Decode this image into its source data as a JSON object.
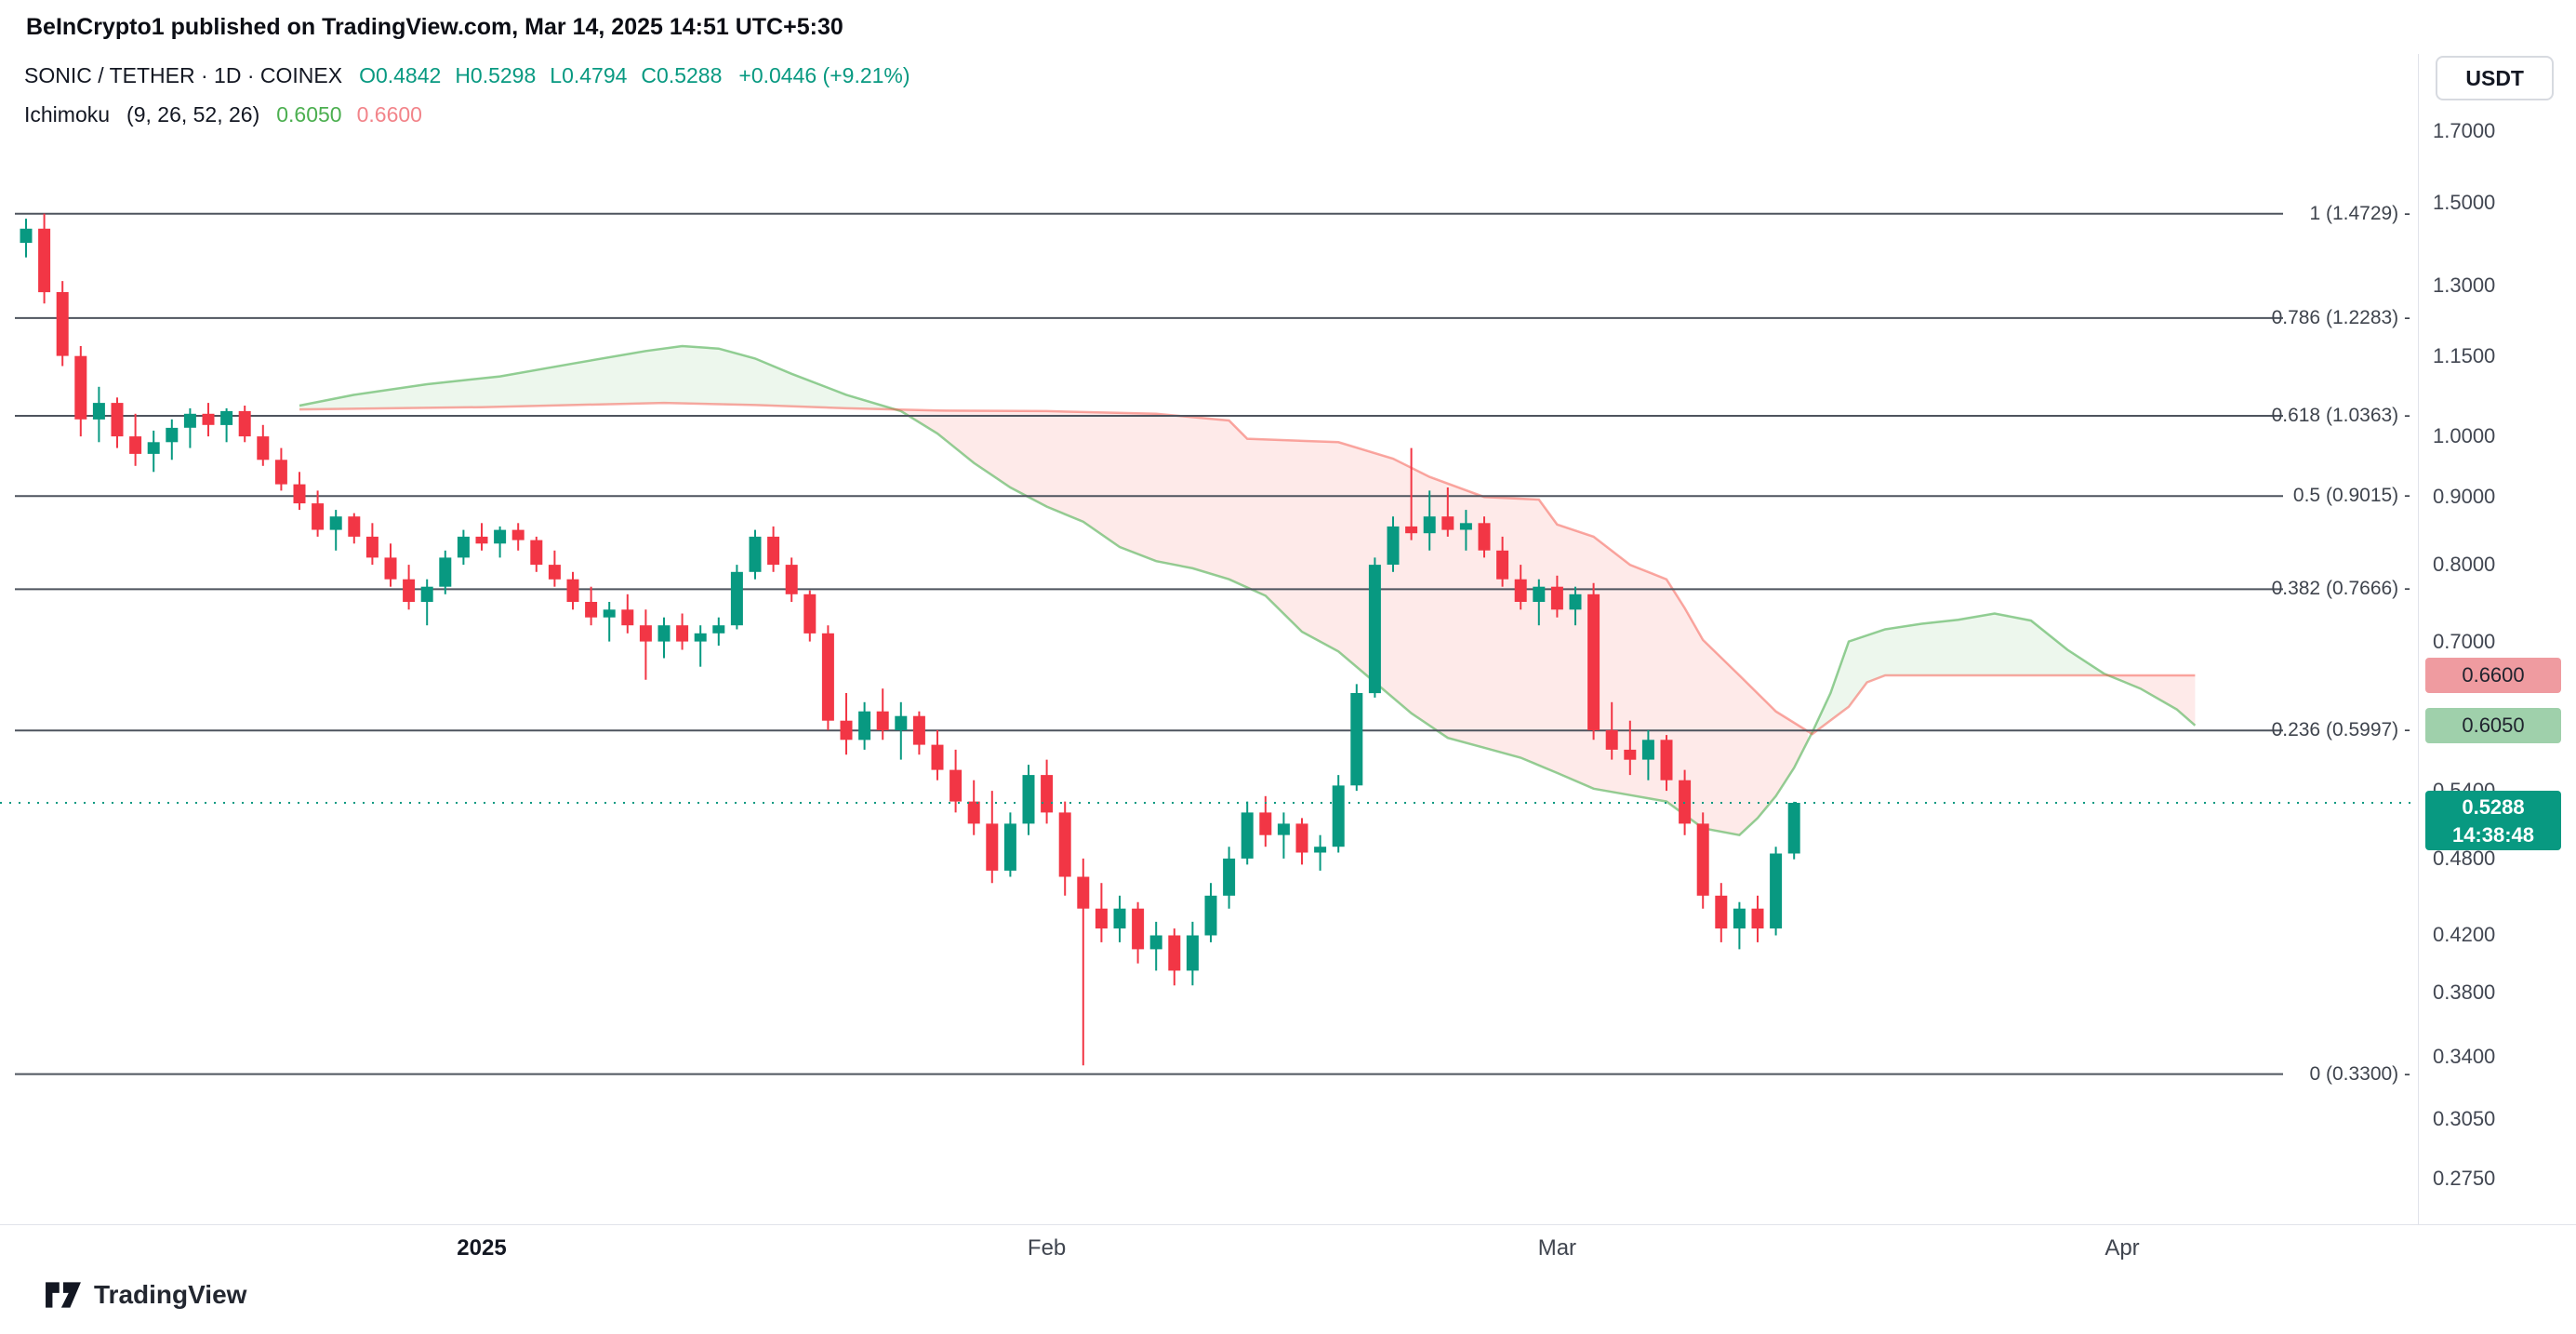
{
  "header": {
    "attribution": "BeInCrypto1 published on TradingView.com, Mar 14, 2025 14:51 UTC+5:30"
  },
  "toolbar": {
    "currency_button": "USDT"
  },
  "legend": {
    "symbol": "SONIC / TETHER · 1D · COINEX",
    "ohlc": [
      {
        "k": "O",
        "v": "0.4842"
      },
      {
        "k": "H",
        "v": "0.5298"
      },
      {
        "k": "L",
        "v": "0.4794"
      },
      {
        "k": "C",
        "v": "0.5288"
      }
    ],
    "change": "+0.0446 (+9.21%)",
    "indicator": {
      "name": "Ichimoku",
      "params": "(9, 26, 52, 26)",
      "values": [
        {
          "text": "0.6050",
          "color": "#4caf50"
        },
        {
          "text": "0.6600",
          "color": "#f2848a"
        }
      ]
    }
  },
  "watermark": {
    "text": "TradingView"
  },
  "time_axis": {
    "labels": [
      {
        "text": "2025",
        "i": 25,
        "bold": true
      },
      {
        "text": "Feb",
        "i": 56
      },
      {
        "text": "Mar",
        "i": 84
      },
      {
        "text": "Apr",
        "i": 115
      }
    ]
  },
  "price_axis": {
    "ticks": [
      {
        "text": "1.7000",
        "price": 1.7
      },
      {
        "text": "1.5000",
        "price": 1.5
      },
      {
        "text": "1.3000",
        "price": 1.3
      },
      {
        "text": "1.1500",
        "price": 1.15
      },
      {
        "text": "1.0000",
        "price": 1.0
      },
      {
        "text": "0.9000",
        "price": 0.9
      },
      {
        "text": "0.8000",
        "price": 0.8
      },
      {
        "text": "0.7000",
        "price": 0.7
      },
      {
        "text": "0.5400",
        "price": 0.54
      },
      {
        "text": "0.4800",
        "price": 0.48
      },
      {
        "text": "0.4200",
        "price": 0.42
      },
      {
        "text": "0.3800",
        "price": 0.38
      },
      {
        "text": "0.3400",
        "price": 0.34
      },
      {
        "text": "0.3050",
        "price": 0.305
      },
      {
        "text": "0.2750",
        "price": 0.275
      }
    ],
    "labels": [
      {
        "name": "ichimoku-span-b-price-label",
        "text": "0.6600",
        "price": 0.66,
        "bg": "#ef9ba0",
        "color": "#20242e"
      },
      {
        "name": "ichimoku-span-a-price-label",
        "text": "0.6050",
        "price": 0.605,
        "bg": "#9fd0ab",
        "color": "#20242e"
      },
      {
        "name": "last-price-label",
        "text": "0.5288",
        "sub": "14:38:48",
        "price": 0.5288,
        "bg": "#089981",
        "color": "#ffffff"
      }
    ]
  },
  "colors": {
    "up": "#089981",
    "down": "#f23645",
    "cloud_up": "rgba(76,175,80,0.10)",
    "cloud_down": "rgba(244,67,54,0.11)",
    "senkou_a": "#4caf50",
    "senkou_b": "#f44336",
    "fib_line": "#4e545e",
    "price_line": "#089981"
  },
  "chart_data": {
    "type": "candlestick",
    "symbol": "SONIC / TETHER",
    "exchange": "COINEX",
    "interval": "1D",
    "scale": "log",
    "ylim": [
      0.26,
      1.8
    ],
    "start_date": "2024-12-07",
    "end_date": "2025-03-14",
    "x_tick_labels": [
      "2025",
      "Feb",
      "Mar",
      "Apr"
    ],
    "current_price": 0.5288,
    "countdown": "14:38:48",
    "last_bar": {
      "open": 0.4842,
      "high": 0.5298,
      "low": 0.4794,
      "close": 0.5288,
      "change_abs": 0.0446,
      "change_pct": 9.21
    },
    "fibonacci": [
      {
        "level": "1",
        "price": 1.4729,
        "text": "1 (1.4729) -"
      },
      {
        "level": "0.786",
        "price": 1.2283,
        "text": "0.786 (1.2283) -"
      },
      {
        "level": "0.618",
        "price": 1.0363,
        "text": "0.618 (1.0363) -"
      },
      {
        "level": "0.5",
        "price": 0.9015,
        "text": "0.5 (0.9015) -"
      },
      {
        "level": "0.382",
        "price": 0.7666,
        "text": "0.382 (0.7666) -"
      },
      {
        "level": "0.236",
        "price": 0.5997,
        "text": "0.236 (0.5997) -"
      },
      {
        "level": "0",
        "price": 0.33,
        "text": "0 (0.3300) -"
      }
    ],
    "candles": [
      [
        1.4,
        1.46,
        1.365,
        1.435
      ],
      [
        1.435,
        1.473,
        1.26,
        1.285
      ],
      [
        1.285,
        1.31,
        1.13,
        1.15
      ],
      [
        1.15,
        1.17,
        1.0,
        1.03
      ],
      [
        1.03,
        1.09,
        0.99,
        1.06
      ],
      [
        1.06,
        1.07,
        0.98,
        1.0
      ],
      [
        1.0,
        1.04,
        0.95,
        0.97
      ],
      [
        0.97,
        1.01,
        0.94,
        0.99
      ],
      [
        0.99,
        1.03,
        0.96,
        1.015
      ],
      [
        1.015,
        1.05,
        0.98,
        1.04
      ],
      [
        1.04,
        1.06,
        1.0,
        1.02
      ],
      [
        1.02,
        1.05,
        0.99,
        1.045
      ],
      [
        1.045,
        1.055,
        0.99,
        1.0
      ],
      [
        1.0,
        1.02,
        0.95,
        0.96
      ],
      [
        0.96,
        0.98,
        0.91,
        0.92
      ],
      [
        0.92,
        0.94,
        0.88,
        0.89
      ],
      [
        0.89,
        0.91,
        0.84,
        0.85
      ],
      [
        0.85,
        0.88,
        0.82,
        0.87
      ],
      [
        0.87,
        0.875,
        0.83,
        0.84
      ],
      [
        0.84,
        0.86,
        0.8,
        0.81
      ],
      [
        0.81,
        0.83,
        0.77,
        0.78
      ],
      [
        0.78,
        0.8,
        0.74,
        0.75
      ],
      [
        0.75,
        0.78,
        0.72,
        0.77
      ],
      [
        0.77,
        0.82,
        0.76,
        0.81
      ],
      [
        0.81,
        0.85,
        0.8,
        0.84
      ],
      [
        0.84,
        0.86,
        0.82,
        0.83
      ],
      [
        0.83,
        0.855,
        0.81,
        0.85
      ],
      [
        0.85,
        0.86,
        0.82,
        0.835
      ],
      [
        0.835,
        0.84,
        0.79,
        0.8
      ],
      [
        0.8,
        0.82,
        0.77,
        0.78
      ],
      [
        0.78,
        0.79,
        0.74,
        0.75
      ],
      [
        0.75,
        0.77,
        0.72,
        0.73
      ],
      [
        0.73,
        0.75,
        0.7,
        0.74
      ],
      [
        0.74,
        0.76,
        0.71,
        0.72
      ],
      [
        0.72,
        0.74,
        0.655,
        0.7
      ],
      [
        0.7,
        0.73,
        0.68,
        0.72
      ],
      [
        0.72,
        0.735,
        0.69,
        0.7
      ],
      [
        0.7,
        0.72,
        0.67,
        0.71
      ],
      [
        0.71,
        0.73,
        0.695,
        0.72
      ],
      [
        0.72,
        0.8,
        0.715,
        0.79
      ],
      [
        0.79,
        0.85,
        0.78,
        0.84
      ],
      [
        0.84,
        0.855,
        0.79,
        0.8
      ],
      [
        0.8,
        0.81,
        0.75,
        0.76
      ],
      [
        0.76,
        0.765,
        0.7,
        0.71
      ],
      [
        0.71,
        0.72,
        0.6,
        0.61
      ],
      [
        0.61,
        0.64,
        0.575,
        0.59
      ],
      [
        0.59,
        0.63,
        0.58,
        0.62
      ],
      [
        0.62,
        0.645,
        0.59,
        0.6
      ],
      [
        0.6,
        0.63,
        0.57,
        0.615
      ],
      [
        0.615,
        0.62,
        0.575,
        0.585
      ],
      [
        0.585,
        0.6,
        0.55,
        0.56
      ],
      [
        0.56,
        0.58,
        0.52,
        0.53
      ],
      [
        0.53,
        0.55,
        0.5,
        0.51
      ],
      [
        0.51,
        0.54,
        0.46,
        0.47
      ],
      [
        0.47,
        0.52,
        0.465,
        0.51
      ],
      [
        0.51,
        0.565,
        0.5,
        0.555
      ],
      [
        0.555,
        0.57,
        0.51,
        0.52
      ],
      [
        0.52,
        0.53,
        0.45,
        0.465
      ],
      [
        0.465,
        0.48,
        0.335,
        0.44
      ],
      [
        0.44,
        0.46,
        0.415,
        0.425
      ],
      [
        0.425,
        0.45,
        0.415,
        0.44
      ],
      [
        0.44,
        0.445,
        0.4,
        0.41
      ],
      [
        0.41,
        0.43,
        0.395,
        0.42
      ],
      [
        0.42,
        0.425,
        0.385,
        0.395
      ],
      [
        0.395,
        0.43,
        0.385,
        0.42
      ],
      [
        0.42,
        0.46,
        0.415,
        0.45
      ],
      [
        0.45,
        0.49,
        0.44,
        0.48
      ],
      [
        0.48,
        0.53,
        0.475,
        0.52
      ],
      [
        0.52,
        0.535,
        0.49,
        0.5
      ],
      [
        0.5,
        0.52,
        0.48,
        0.51
      ],
      [
        0.51,
        0.515,
        0.475,
        0.485
      ],
      [
        0.485,
        0.5,
        0.47,
        0.49
      ],
      [
        0.49,
        0.555,
        0.485,
        0.545
      ],
      [
        0.545,
        0.65,
        0.54,
        0.64
      ],
      [
        0.64,
        0.81,
        0.635,
        0.8
      ],
      [
        0.8,
        0.87,
        0.79,
        0.855
      ],
      [
        0.855,
        0.98,
        0.835,
        0.845
      ],
      [
        0.845,
        0.91,
        0.82,
        0.87
      ],
      [
        0.87,
        0.915,
        0.84,
        0.85
      ],
      [
        0.85,
        0.88,
        0.82,
        0.86
      ],
      [
        0.86,
        0.87,
        0.81,
        0.82
      ],
      [
        0.82,
        0.84,
        0.77,
        0.78
      ],
      [
        0.78,
        0.8,
        0.74,
        0.75
      ],
      [
        0.75,
        0.78,
        0.72,
        0.77
      ],
      [
        0.77,
        0.785,
        0.73,
        0.74
      ],
      [
        0.74,
        0.77,
        0.72,
        0.76
      ],
      [
        0.76,
        0.775,
        0.59,
        0.6
      ],
      [
        0.6,
        0.63,
        0.57,
        0.58
      ],
      [
        0.58,
        0.61,
        0.555,
        0.57
      ],
      [
        0.57,
        0.6,
        0.55,
        0.59
      ],
      [
        0.59,
        0.595,
        0.54,
        0.55
      ],
      [
        0.55,
        0.56,
        0.5,
        0.51
      ],
      [
        0.51,
        0.52,
        0.44,
        0.45
      ],
      [
        0.45,
        0.46,
        0.415,
        0.425
      ],
      [
        0.425,
        0.445,
        0.41,
        0.44
      ],
      [
        0.44,
        0.45,
        0.415,
        0.425
      ],
      [
        0.425,
        0.49,
        0.42,
        0.4842
      ],
      [
        0.4842,
        0.5298,
        0.4794,
        0.5288
      ]
    ],
    "ichimoku": {
      "settings": "9, 26, 52, 26",
      "span_a_latest": 0.605,
      "span_b_latest": 0.66,
      "senkou_a": [
        [
          15,
          1.055
        ],
        [
          18,
          1.075
        ],
        [
          22,
          1.095
        ],
        [
          26,
          1.11
        ],
        [
          30,
          1.135
        ],
        [
          34,
          1.16
        ],
        [
          36,
          1.17
        ],
        [
          38,
          1.165
        ],
        [
          40,
          1.145
        ],
        [
          42,
          1.115
        ],
        [
          45,
          1.075
        ],
        [
          48,
          1.045
        ],
        [
          50,
          1.005
        ],
        [
          52,
          0.955
        ],
        [
          54,
          0.915
        ],
        [
          56,
          0.885
        ],
        [
          58,
          0.862
        ],
        [
          60,
          0.825
        ],
        [
          62,
          0.805
        ],
        [
          64,
          0.795
        ],
        [
          66,
          0.78
        ],
        [
          68,
          0.758
        ],
        [
          70,
          0.712
        ],
        [
          72,
          0.688
        ],
        [
          74,
          0.652
        ],
        [
          76,
          0.618
        ],
        [
          78,
          0.592
        ],
        [
          80,
          0.582
        ],
        [
          82,
          0.572
        ],
        [
          84,
          0.557
        ],
        [
          86,
          0.542
        ],
        [
          88,
          0.536
        ],
        [
          90,
          0.53
        ],
        [
          92,
          0.506
        ],
        [
          94,
          0.5
        ],
        [
          95,
          0.515
        ],
        [
          96,
          0.535
        ],
        [
          97,
          0.562
        ],
        [
          98,
          0.598
        ],
        [
          99,
          0.64
        ],
        [
          100,
          0.7
        ],
        [
          102,
          0.715
        ],
        [
          104,
          0.722
        ],
        [
          106,
          0.727
        ],
        [
          108,
          0.735
        ],
        [
          110,
          0.726
        ],
        [
          112,
          0.69
        ],
        [
          114,
          0.662
        ],
        [
          116,
          0.645
        ],
        [
          118,
          0.622
        ],
        [
          119,
          0.605
        ]
      ],
      "senkou_b": [
        [
          15,
          1.048
        ],
        [
          20,
          1.05
        ],
        [
          25,
          1.052
        ],
        [
          30,
          1.056
        ],
        [
          35,
          1.06
        ],
        [
          40,
          1.056
        ],
        [
          45,
          1.05
        ],
        [
          50,
          1.046
        ],
        [
          56,
          1.045
        ],
        [
          62,
          1.04
        ],
        [
          66,
          1.028
        ],
        [
          67,
          0.996
        ],
        [
          72,
          0.99
        ],
        [
          75,
          0.962
        ],
        [
          77,
          0.932
        ],
        [
          80,
          0.9
        ],
        [
          83,
          0.896
        ],
        [
          84,
          0.858
        ],
        [
          86,
          0.84
        ],
        [
          88,
          0.8
        ],
        [
          90,
          0.78
        ],
        [
          91,
          0.742
        ],
        [
          92,
          0.702
        ],
        [
          94,
          0.66
        ],
        [
          96,
          0.62
        ],
        [
          98,
          0.596
        ],
        [
          100,
          0.625
        ],
        [
          101,
          0.652
        ],
        [
          102,
          0.66
        ],
        [
          110,
          0.66
        ],
        [
          119,
          0.66
        ]
      ]
    }
  }
}
